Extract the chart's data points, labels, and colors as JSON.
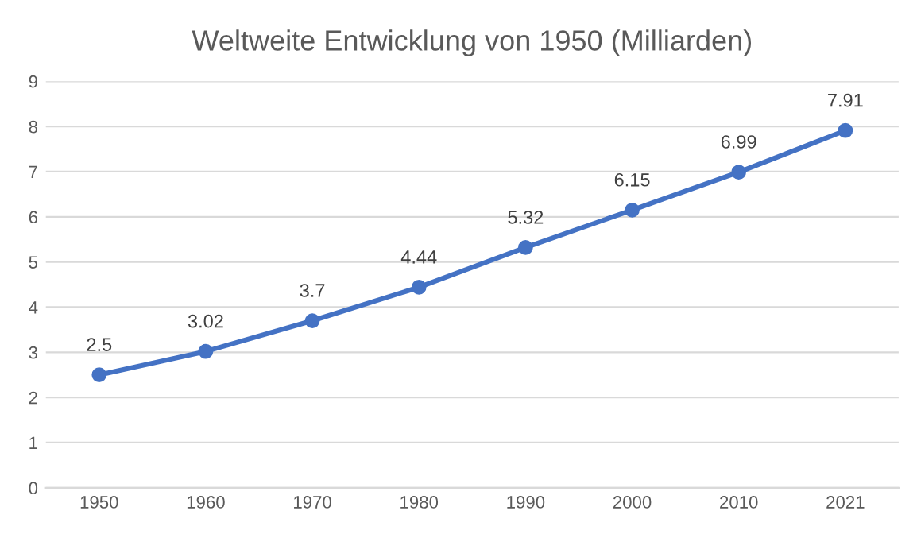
{
  "chart_data": {
    "type": "line",
    "title": "Weltweite Entwicklung von 1950 (Milliarden)",
    "categories": [
      "1950",
      "1960",
      "1970",
      "1980",
      "1990",
      "2000",
      "2010",
      "2021"
    ],
    "series": [
      {
        "color": "#4472c4",
        "values": [
          2.5,
          3.02,
          3.7,
          4.44,
          5.32,
          6.15,
          6.99,
          7.91
        ]
      }
    ],
    "value_labels": [
      "2.5",
      "3.02",
      "3.7",
      "4.44",
      "5.32",
      "6.15",
      "6.99",
      "7.91"
    ],
    "ylim": [
      0,
      9
    ],
    "yticks": [
      0,
      1,
      2,
      3,
      4,
      5,
      6,
      7,
      8,
      9
    ],
    "grid": "y",
    "marker": "circle",
    "line_style": "solid",
    "legend": false
  }
}
